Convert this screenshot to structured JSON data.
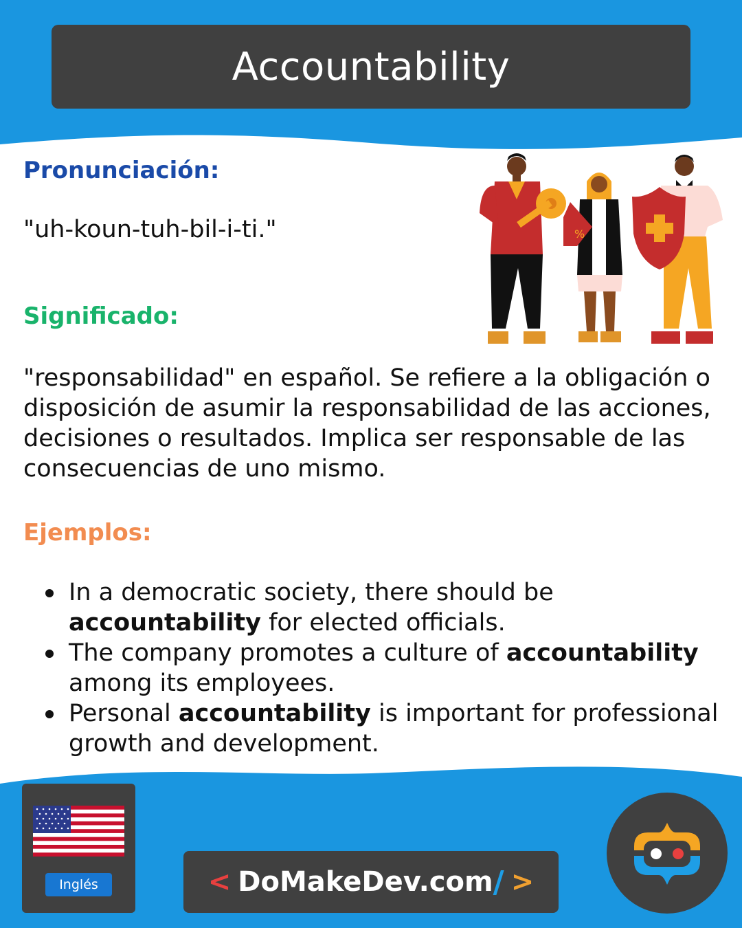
{
  "title": "Accountability",
  "pronunciation": {
    "label": "Pronunciación:",
    "text": "\"uh-koun-tuh-bil-i-ti.\""
  },
  "meaning": {
    "label": "Significado:",
    "text": "\"responsabilidad\" en español. Se refiere a la obligación o disposición de asumir la responsabilidad de las acciones, decisiones o resultados. Implica ser responsable de las consecuencias de uno mismo."
  },
  "examples": {
    "label": "Ejemplos:",
    "items": [
      {
        "before": "In a democratic society, there should be ",
        "bold": "accountability",
        "after": " for elected officials."
      },
      {
        "before": "The company promotes a culture of ",
        "bold": "accountability",
        "after": " among its employees."
      },
      {
        "before": "Personal ",
        "bold": "accountability",
        "after": " is important for professional growth and development."
      }
    ]
  },
  "footer": {
    "language": "Inglés",
    "brand_lt": "<",
    "brand_name": "DoMakeDev.com",
    "brand_slash": "/",
    "brand_gt": ">"
  },
  "icons": [
    "us-flag-icon",
    "people-illustration",
    "domakedev-logo-icon"
  ],
  "colors": {
    "sky_blue": "#1a96e0",
    "dark_box": "#404040",
    "pronunciation_label": "#1a4aa8",
    "meaning_label": "#19b36b",
    "examples_label": "#f28c50"
  }
}
